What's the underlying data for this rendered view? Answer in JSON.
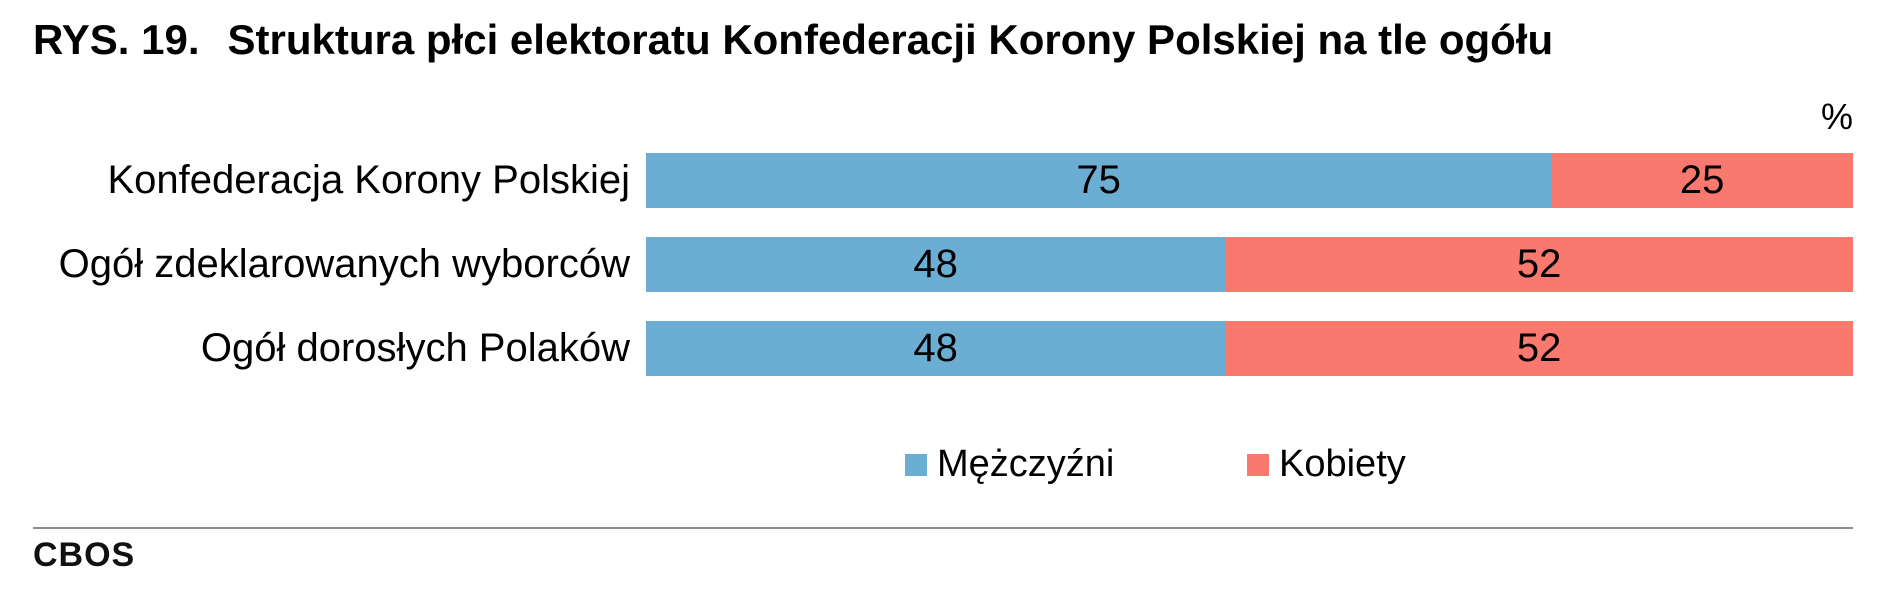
{
  "title": {
    "prefix": "RYS. 19.",
    "text": "Struktura płci elektoratu Konfederacji Korony Polskiej na tle ogółu"
  },
  "unit_label": "%",
  "footer": {
    "brand": "CBOS"
  },
  "colors": {
    "men_blue": "#6CADD3",
    "women_red": "#F9796E",
    "divider_gray": "#8E8E8E",
    "text": "#000000",
    "background": "#FFFFFF"
  },
  "chart_data": {
    "type": "bar",
    "variant": "horizontal-stacked",
    "unit": "%",
    "title": "RYS. 19. Struktura płci elektoratu Konfederacji Korony Polskiej na tle ogółu",
    "categories": [
      "Konfederacja Korony Polskiej",
      "Ogół zdeklarowanych wyborców",
      "Ogół dorosłych Polaków"
    ],
    "series": [
      {
        "name": "Mężczyźni",
        "color": "#6CADD3",
        "values": [
          75,
          48,
          48
        ]
      },
      {
        "name": "Kobiety",
        "color": "#F9796E",
        "values": [
          25,
          52,
          52
        ]
      }
    ],
    "xlim": [
      0,
      100
    ],
    "grid": false,
    "legend_position": "bottom",
    "value_labels": "inside-center"
  }
}
